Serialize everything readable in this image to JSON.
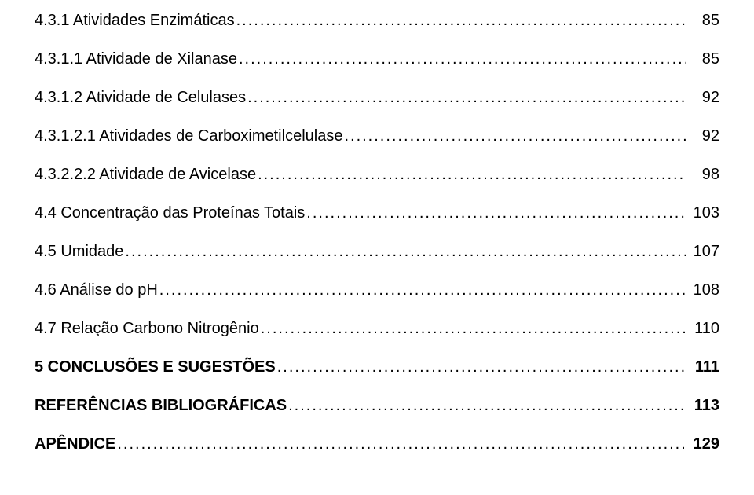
{
  "toc": {
    "dots": "................................................................................................................................................................................................................................................",
    "entries": [
      {
        "label": "4.3.1 Atividades Enzimáticas",
        "page": "85",
        "bold": false
      },
      {
        "label": "4.3.1.1 Atividade de Xilanase",
        "page": "85",
        "bold": false
      },
      {
        "label": "4.3.1.2 Atividade de Celulases",
        "page": "92",
        "bold": false
      },
      {
        "label": "4.3.1.2.1 Atividades de Carboximetilcelulase",
        "page": "92",
        "bold": false
      },
      {
        "label": "4.3.2.2.2 Atividade de Avicelase",
        "page": "98",
        "bold": false
      },
      {
        "label": "4.4 Concentração das Proteínas Totais",
        "page": "103",
        "bold": false
      },
      {
        "label": "4.5 Umidade",
        "page": "107",
        "bold": false
      },
      {
        "label": "4.6 Análise do pH",
        "page": "108",
        "bold": false
      },
      {
        "label": "4.7 Relação Carbono Nitrogênio",
        "page": "110",
        "bold": false
      },
      {
        "label": "5 CONCLUSÕES E SUGESTÕES",
        "page": "111",
        "bold": true
      },
      {
        "label": "REFERÊNCIAS BIBLIOGRÁFICAS",
        "page": "113",
        "bold": true
      },
      {
        "label": "APÊNDICE",
        "page": "129",
        "bold": true
      }
    ]
  },
  "style": {
    "font_size_pt": 15,
    "text_color": "#000000",
    "background_color": "#ffffff"
  }
}
